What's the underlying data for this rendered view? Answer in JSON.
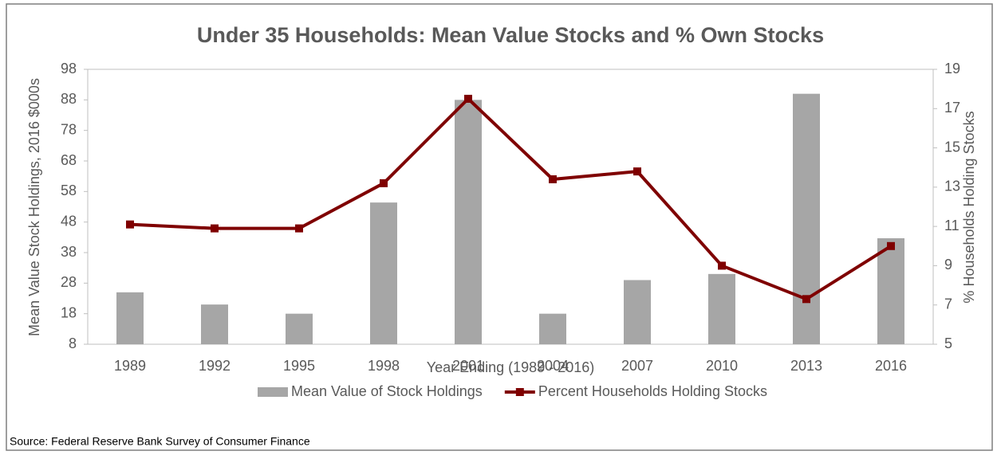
{
  "chart_data": {
    "type": "combo",
    "title": "Under 35 Households: Mean Value Stocks and % Own Stocks",
    "x_label": "Year Ending (1989 - 2016)",
    "y_label": "Mean Value Stock Holdings, 2016 $000s",
    "y2_label": "% Households  Holding  Stocks",
    "source": "Source: Federal Reserve Bank Survey of Consumer Finance",
    "categories": [
      "1989",
      "1992",
      "1995",
      "1998",
      "2001",
      "2004",
      "2007",
      "2010",
      "2013",
      "2016"
    ],
    "series": [
      {
        "name": "Mean Value of Stock Holdings",
        "type": "bar",
        "color": "#a6a6a6",
        "values": [
          25,
          21,
          18,
          54.4,
          88,
          18,
          29,
          31,
          90,
          42.7
        ]
      },
      {
        "name": "Percent Households Holding Stocks",
        "type": "line",
        "axis": "y2",
        "color": "#7f0000",
        "values": [
          11.1,
          10.9,
          10.9,
          13.2,
          17.5,
          13.4,
          13.8,
          9.0,
          7.3,
          10.0
        ]
      }
    ],
    "ylim": [
      8,
      98
    ],
    "yticks": [
      8,
      18,
      28,
      38,
      48,
      58,
      68,
      78,
      88,
      98
    ],
    "y2lim": [
      5,
      19
    ],
    "y2ticks": [
      5,
      7,
      9,
      11,
      13,
      15,
      17,
      19
    ],
    "legend": "bottom"
  }
}
